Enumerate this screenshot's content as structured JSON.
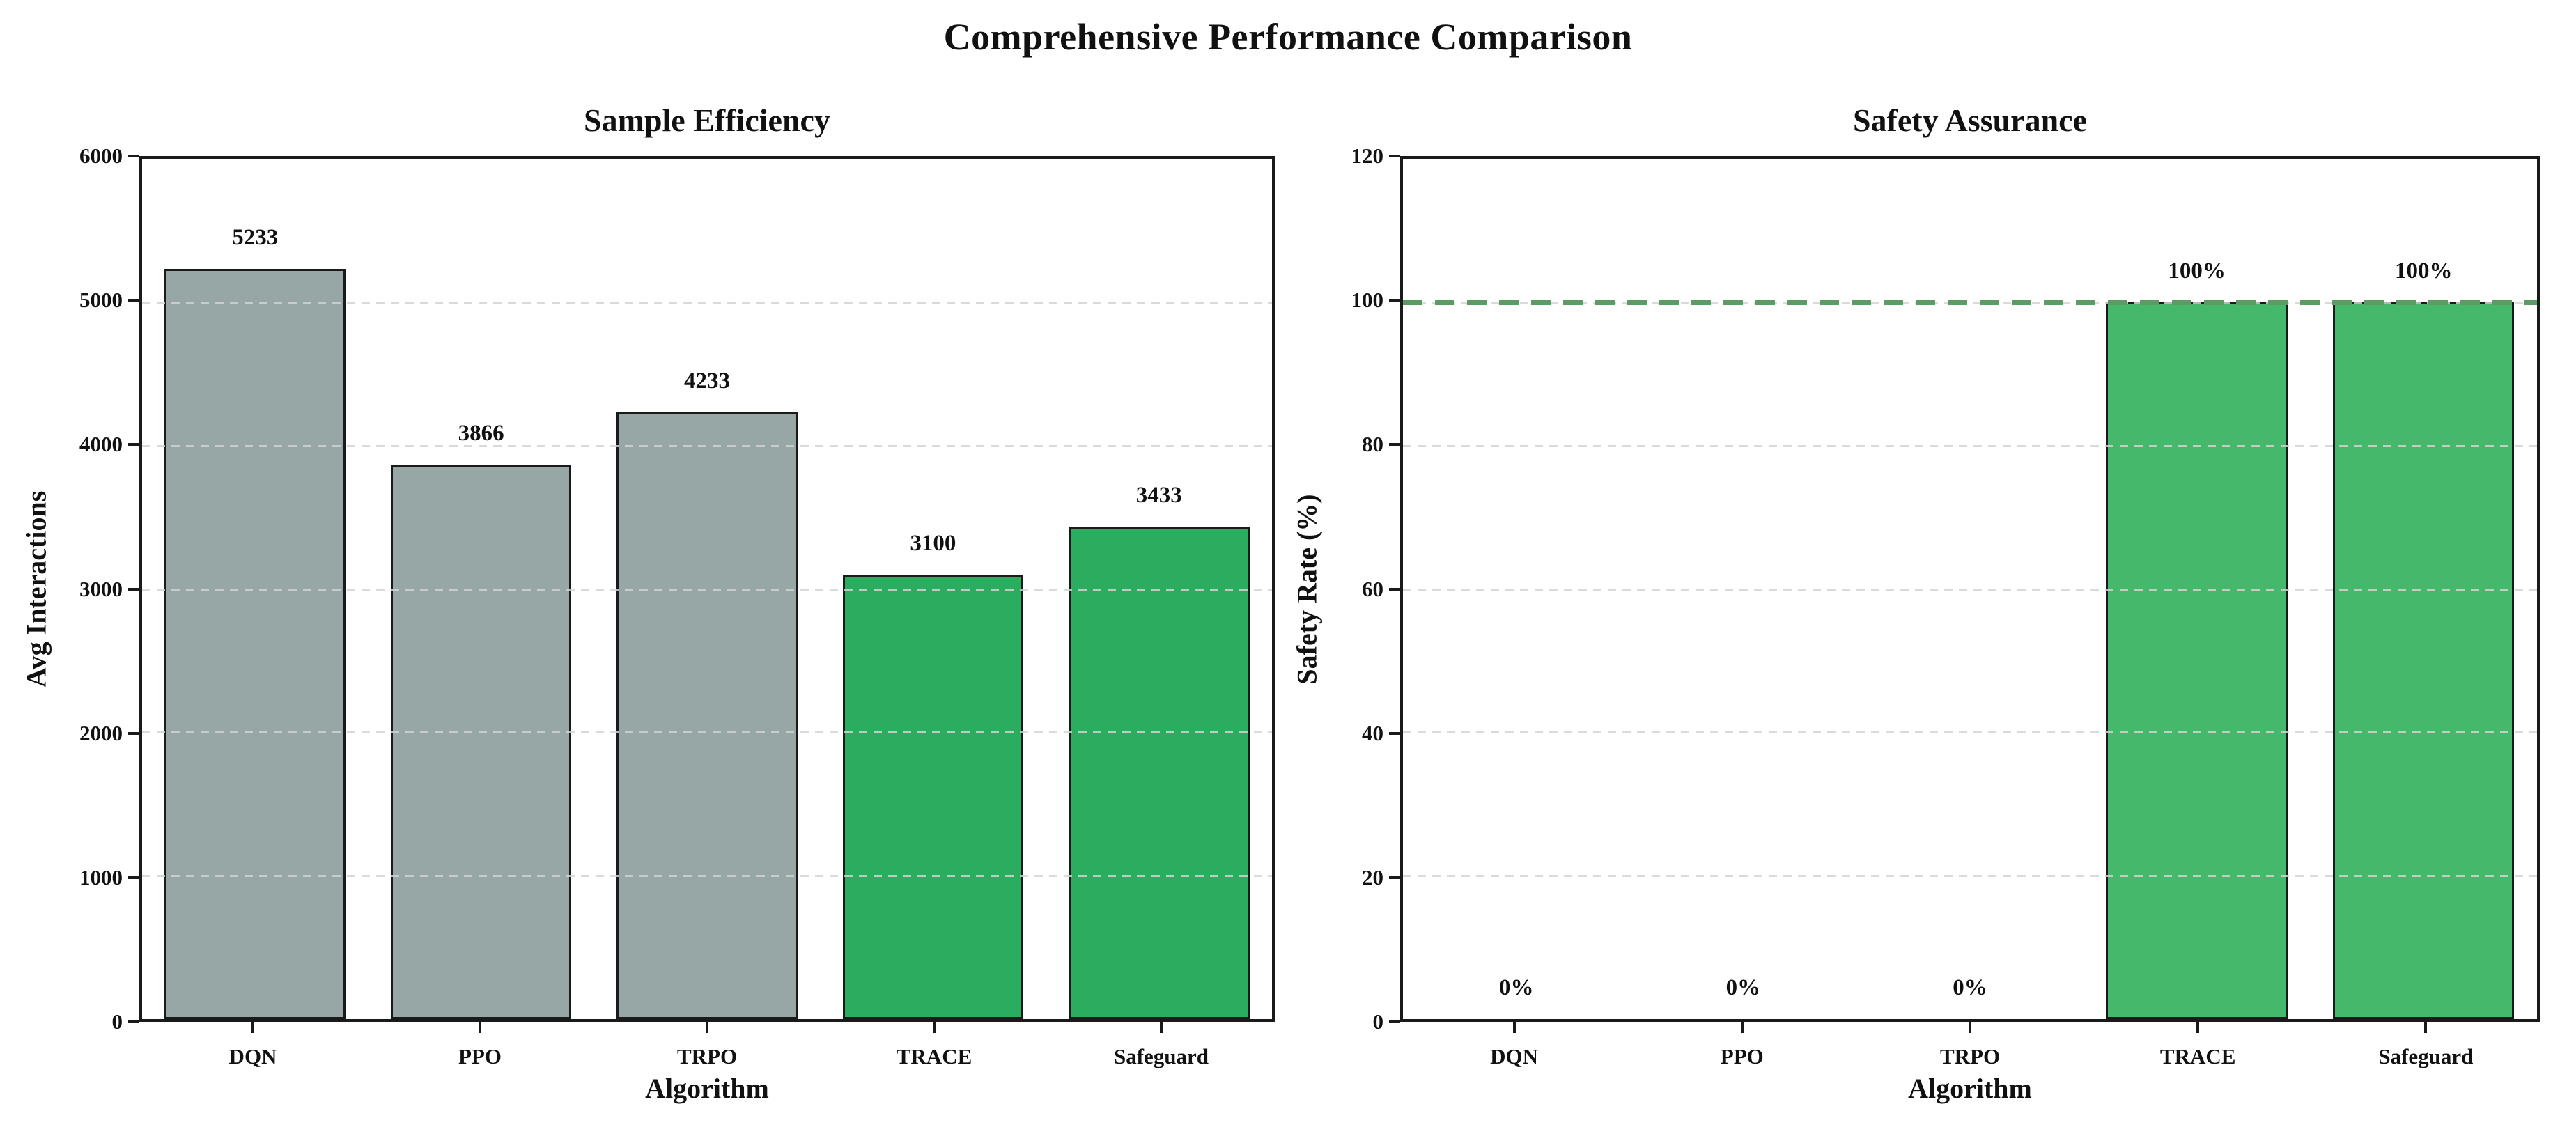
{
  "figure": {
    "title": "Comprehensive Performance Comparison"
  },
  "chart_data": [
    {
      "type": "bar",
      "title": "Sample Efficiency",
      "xlabel": "Algorithm",
      "ylabel": "Avg Interactions",
      "categories": [
        "DQN",
        "PPO",
        "TRPO",
        "TRACE",
        "Safeguard"
      ],
      "values": [
        5233,
        3866,
        4233,
        3100,
        3433
      ],
      "bar_labels": [
        "5233",
        "3866",
        "4233",
        "3100",
        "3433"
      ],
      "bar_colors": [
        "#97a7a5",
        "#97a7a5",
        "#97a7a5",
        "#2aad5e",
        "#2aad5e"
      ],
      "ylim": [
        0,
        6000
      ],
      "yticks": [
        0,
        1000,
        2000,
        3000,
        4000,
        5000,
        6000
      ],
      "grid": true,
      "legend_position": "none"
    },
    {
      "type": "bar",
      "title": "Safety Assurance",
      "xlabel": "Algorithm",
      "ylabel": "Safety Rate (%)",
      "categories": [
        "DQN",
        "PPO",
        "TRPO",
        "TRACE",
        "Safeguard"
      ],
      "values": [
        0,
        0,
        0,
        100,
        100
      ],
      "bar_labels": [
        "0%",
        "0%",
        "0%",
        "100%",
        "100%"
      ],
      "bar_colors": [
        "#46b86c",
        "#46b86c",
        "#46b86c",
        "#46b86c",
        "#46b86c"
      ],
      "ylim": [
        0,
        120
      ],
      "yticks": [
        0,
        20,
        40,
        60,
        80,
        100,
        120
      ],
      "grid": true,
      "legend_position": "none",
      "ref_line": {
        "y": 100,
        "color": "#5d9b64",
        "style": "dashed"
      }
    }
  ]
}
